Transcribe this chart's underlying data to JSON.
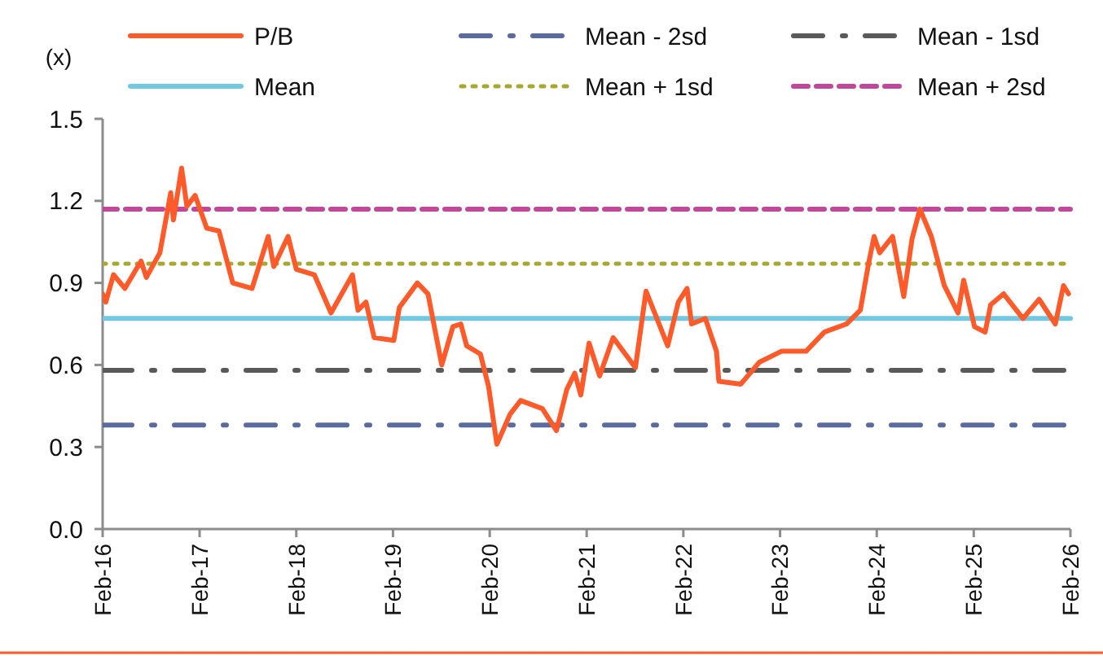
{
  "chart_data": {
    "type": "line",
    "ylabel": "(x)",
    "xlim": [
      "2016-02-01",
      "2026-02-01"
    ],
    "xticks": [
      {
        "value": "2016-02-01",
        "label": "Feb-16"
      },
      {
        "value": "2017-02-01",
        "label": "Feb-17"
      },
      {
        "value": "2018-02-01",
        "label": "Feb-18"
      },
      {
        "value": "2019-02-01",
        "label": "Feb-19"
      },
      {
        "value": "2020-02-01",
        "label": "Feb-20"
      },
      {
        "value": "2021-02-01",
        "label": "Feb-21"
      },
      {
        "value": "2022-02-01",
        "label": "Feb-22"
      },
      {
        "value": "2023-02-01",
        "label": "Feb-23"
      },
      {
        "value": "2024-02-01",
        "label": "Feb-24"
      },
      {
        "value": "2025-02-01",
        "label": "Feb-25"
      },
      {
        "value": "2026-02-01",
        "label": "Feb-26"
      }
    ],
    "ylim": [
      0,
      1.5
    ],
    "yticks": [
      {
        "value": 0,
        "label": "0.0"
      },
      {
        "value": 0.3,
        "label": "0.3"
      },
      {
        "value": 0.6,
        "label": "0.6"
      },
      {
        "value": 0.9,
        "label": "0.9"
      },
      {
        "value": 1.2,
        "label": "1.2"
      },
      {
        "value": 1.5,
        "label": "1.5"
      }
    ],
    "grid": false,
    "legend": "top",
    "marker": "none",
    "series": [
      {
        "name": "P/B",
        "color": "#ff5a2a",
        "line_style": "solid",
        "x": [
          "2016-02-01",
          "2016-02-13",
          "2016-03-13",
          "2016-04-25",
          "2016-06-25",
          "2016-07-15",
          "2016-09-04",
          "2016-10-15",
          "2016-10-25",
          "2016-11-25",
          "2016-12-15",
          "2017-01-15",
          "2017-02-28",
          "2017-04-15",
          "2017-06-06",
          "2017-08-18",
          "2017-10-18",
          "2017-11-08",
          "2018-01-01",
          "2018-02-01",
          "2018-04-10",
          "2018-06-12",
          "2018-09-01",
          "2018-09-22",
          "2018-10-22",
          "2018-11-22",
          "2019-02-04",
          "2019-02-25",
          "2019-05-04",
          "2019-06-13",
          "2019-08-04",
          "2019-09-15",
          "2019-10-15",
          "2019-11-06",
          "2019-12-28",
          "2020-01-28",
          "2020-02-28",
          "2020-04-18",
          "2020-05-28",
          "2020-08-18",
          "2020-10-10",
          "2020-11-18",
          "2020-12-18",
          "2021-01-10",
          "2021-02-10",
          "2021-03-22",
          "2021-05-12",
          "2021-08-04",
          "2021-09-13",
          "2021-12-04",
          "2022-01-13",
          "2022-02-15",
          "2022-03-04",
          "2022-04-25",
          "2022-06-06",
          "2022-06-15",
          "2022-09-06",
          "2022-11-15",
          "2023-02-06",
          "2023-05-10",
          "2023-07-18",
          "2023-10-10",
          "2023-12-01",
          "2024-01-01",
          "2024-01-22",
          "2024-02-12",
          "2024-04-01",
          "2024-05-13",
          "2024-06-13",
          "2024-07-13",
          "2024-08-25",
          "2024-10-13",
          "2024-12-04",
          "2024-12-25",
          "2025-02-04",
          "2025-03-16",
          "2025-04-06",
          "2025-05-25",
          "2025-08-06",
          "2025-10-06",
          "2025-12-06",
          "2026-01-06",
          "2026-01-25"
        ],
        "values": [
          0.86,
          0.83,
          0.93,
          0.88,
          0.98,
          0.92,
          1.01,
          1.23,
          1.13,
          1.32,
          1.18,
          1.22,
          1.1,
          1.09,
          0.9,
          0.88,
          1.07,
          0.96,
          1.07,
          0.95,
          0.93,
          0.79,
          0.93,
          0.8,
          0.83,
          0.7,
          0.69,
          0.81,
          0.9,
          0.86,
          0.6,
          0.74,
          0.75,
          0.67,
          0.64,
          0.52,
          0.31,
          0.42,
          0.47,
          0.44,
          0.36,
          0.51,
          0.57,
          0.49,
          0.68,
          0.56,
          0.7,
          0.59,
          0.87,
          0.67,
          0.83,
          0.88,
          0.75,
          0.77,
          0.65,
          0.54,
          0.53,
          0.61,
          0.65,
          0.65,
          0.72,
          0.75,
          0.8,
          0.97,
          1.07,
          1.01,
          1.07,
          0.85,
          1.06,
          1.17,
          1.07,
          0.89,
          0.79,
          0.91,
          0.74,
          0.72,
          0.82,
          0.86,
          0.77,
          0.84,
          0.75,
          0.89,
          0.86
        ]
      },
      {
        "name": "Mean - 2sd",
        "color": "#5b6ba0",
        "line_style": "dashdot",
        "x": [
          "2016-02-01",
          "2026-02-01"
        ],
        "values": [
          0.38,
          0.38
        ]
      },
      {
        "name": "Mean - 1sd",
        "color": "#5a5a5a",
        "line_style": "dashdot",
        "x": [
          "2016-02-01",
          "2026-02-01"
        ],
        "values": [
          0.58,
          0.58
        ]
      },
      {
        "name": "Mean",
        "color": "#72c8e0",
        "line_style": "solid",
        "x": [
          "2016-02-01",
          "2026-02-01"
        ],
        "values": [
          0.77,
          0.77
        ]
      },
      {
        "name": "Mean + 1sd",
        "color": "#a6a832",
        "line_style": "dotted",
        "x": [
          "2016-02-01",
          "2026-02-01"
        ],
        "values": [
          0.97,
          0.97
        ]
      },
      {
        "name": "Mean + 2sd",
        "color": "#c0479a",
        "line_style": "dashed",
        "x": [
          "2016-02-01",
          "2026-02-01"
        ],
        "values": [
          1.17,
          1.17
        ]
      }
    ]
  }
}
